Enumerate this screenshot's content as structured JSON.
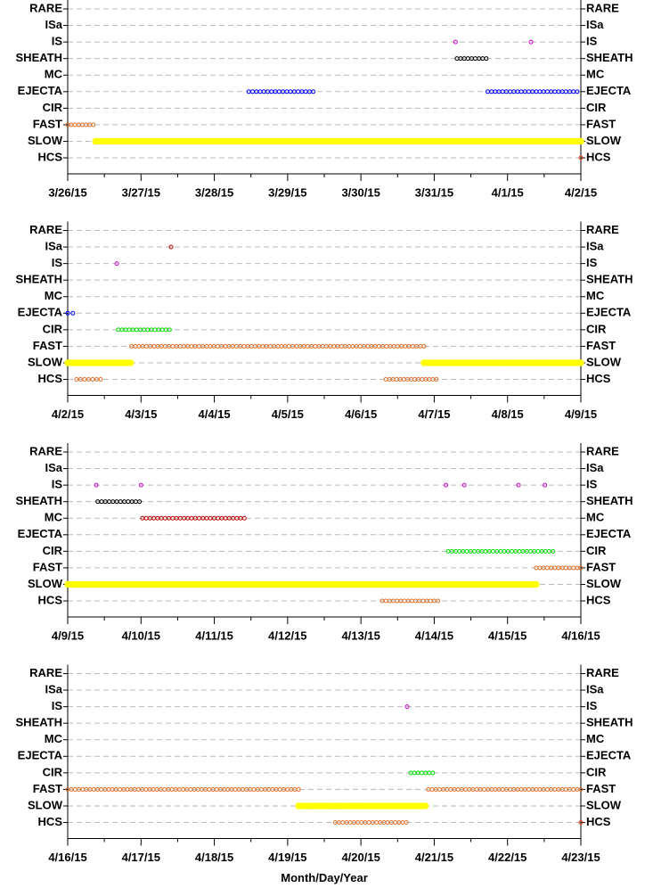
{
  "chart_data": [
    {
      "type": "timeline",
      "categories": [
        "RARE",
        "ISa",
        "IS",
        "SHEATH",
        "MC",
        "EJECTA",
        "CIR",
        "FAST",
        "SLOW",
        "HCS"
      ],
      "xlim": [
        0,
        7
      ],
      "xticks": [
        {
          "value": 0,
          "label": "3/26/15"
        },
        {
          "value": 1,
          "label": "3/27/15"
        },
        {
          "value": 2,
          "label": "3/28/15"
        },
        {
          "value": 3,
          "label": "3/29/15"
        },
        {
          "value": 4,
          "label": "3/30/15"
        },
        {
          "value": 5,
          "label": "3/31/15"
        },
        {
          "value": 6,
          "label": "4/1/15"
        },
        {
          "value": 7,
          "label": "4/2/15"
        }
      ],
      "grid": true,
      "intervals": [
        {
          "category": "FAST",
          "color": "#e0702a",
          "x": [
            0,
            0.35
          ]
        },
        {
          "category": "SLOW",
          "color": "#ffff00",
          "x": [
            0.38,
            7
          ]
        },
        {
          "category": "EJECTA",
          "color": "#0000ff",
          "x": [
            2.47,
            3.35
          ]
        },
        {
          "category": "EJECTA",
          "color": "#0000ff",
          "x": [
            5.73,
            6.95
          ]
        },
        {
          "category": "SHEATH",
          "color": "#000000",
          "x": [
            5.31,
            5.71
          ]
        },
        {
          "category": "IS",
          "color": "#cc00cc",
          "x": [
            5.29,
            5.29
          ]
        },
        {
          "category": "IS",
          "color": "#cc00cc",
          "x": [
            6.32,
            6.32
          ]
        },
        {
          "category": "HCS",
          "color": "#e04010",
          "x": [
            7,
            7
          ]
        }
      ]
    },
    {
      "type": "timeline",
      "categories": [
        "RARE",
        "ISa",
        "IS",
        "SHEATH",
        "MC",
        "EJECTA",
        "CIR",
        "FAST",
        "SLOW",
        "HCS"
      ],
      "xlim": [
        0,
        7
      ],
      "xticks": [
        {
          "value": 0,
          "label": "4/2/15"
        },
        {
          "value": 1,
          "label": "4/3/15"
        },
        {
          "value": 2,
          "label": "4/4/15"
        },
        {
          "value": 3,
          "label": "4/5/15"
        },
        {
          "value": 4,
          "label": "4/6/15"
        },
        {
          "value": 5,
          "label": "4/7/15"
        },
        {
          "value": 6,
          "label": "4/8/15"
        },
        {
          "value": 7,
          "label": "4/9/15"
        }
      ],
      "grid": true,
      "intervals": [
        {
          "category": "EJECTA",
          "color": "#0000ff",
          "x": [
            0,
            0.07
          ]
        },
        {
          "category": "IS",
          "color": "#cc00cc",
          "x": [
            0.67,
            0.67
          ]
        },
        {
          "category": "ISa",
          "color": "#cc0000",
          "x": [
            1.41,
            1.41
          ]
        },
        {
          "category": "CIR",
          "color": "#00dd00",
          "x": [
            0.69,
            1.39
          ]
        },
        {
          "category": "FAST",
          "color": "#e0702a",
          "x": [
            0.87,
            4.86
          ]
        },
        {
          "category": "SLOW",
          "color": "#ffff00",
          "x": [
            0,
            0.86
          ]
        },
        {
          "category": "SLOW",
          "color": "#ffff00",
          "x": [
            4.86,
            7
          ]
        },
        {
          "category": "HCS",
          "color": "#e0702a",
          "x": [
            0.12,
            0.45
          ]
        },
        {
          "category": "HCS",
          "color": "#e0702a",
          "x": [
            4.34,
            5.03
          ]
        }
      ]
    },
    {
      "type": "timeline",
      "categories": [
        "RARE",
        "ISa",
        "IS",
        "SHEATH",
        "MC",
        "EJECTA",
        "CIR",
        "FAST",
        "SLOW",
        "HCS"
      ],
      "xlim": [
        0,
        7
      ],
      "xticks": [
        {
          "value": 0,
          "label": "4/9/15"
        },
        {
          "value": 1,
          "label": "4/10/15"
        },
        {
          "value": 2,
          "label": "4/11/15"
        },
        {
          "value": 3,
          "label": "4/12/15"
        },
        {
          "value": 4,
          "label": "4/13/15"
        },
        {
          "value": 5,
          "label": "4/14/15"
        },
        {
          "value": 6,
          "label": "4/15/15"
        },
        {
          "value": 7,
          "label": "4/16/15"
        }
      ],
      "grid": true,
      "intervals": [
        {
          "category": "IS",
          "color": "#cc00cc",
          "x": [
            0.39,
            0.39
          ]
        },
        {
          "category": "IS",
          "color": "#cc00cc",
          "x": [
            1.0,
            1.0
          ]
        },
        {
          "category": "IS",
          "color": "#cc00cc",
          "x": [
            5.16,
            5.16
          ]
        },
        {
          "category": "IS",
          "color": "#cc00cc",
          "x": [
            5.41,
            5.41
          ]
        },
        {
          "category": "IS",
          "color": "#cc00cc",
          "x": [
            6.15,
            6.15
          ]
        },
        {
          "category": "IS",
          "color": "#cc00cc",
          "x": [
            6.51,
            6.51
          ]
        },
        {
          "category": "SHEATH",
          "color": "#000000",
          "x": [
            0.41,
            0.98
          ]
        },
        {
          "category": "MC",
          "color": "#bb0000",
          "x": [
            1.02,
            2.41
          ]
        },
        {
          "category": "CIR",
          "color": "#00dd00",
          "x": [
            5.19,
            6.62
          ]
        },
        {
          "category": "FAST",
          "color": "#e0702a",
          "x": [
            6.39,
            7
          ]
        },
        {
          "category": "SLOW",
          "color": "#ffff00",
          "x": [
            0,
            6.39
          ]
        },
        {
          "category": "HCS",
          "color": "#e0702a",
          "x": [
            4.29,
            5.05
          ]
        }
      ]
    },
    {
      "type": "timeline",
      "categories": [
        "RARE",
        "ISa",
        "IS",
        "SHEATH",
        "MC",
        "EJECTA",
        "CIR",
        "FAST",
        "SLOW",
        "HCS"
      ],
      "xlim": [
        0,
        7
      ],
      "xticks": [
        {
          "value": 0,
          "label": "4/16/15"
        },
        {
          "value": 1,
          "label": "4/17/15"
        },
        {
          "value": 2,
          "label": "4/18/15"
        },
        {
          "value": 3,
          "label": "4/19/15"
        },
        {
          "value": 4,
          "label": "4/20/15"
        },
        {
          "value": 5,
          "label": "4/21/15"
        },
        {
          "value": 6,
          "label": "4/22/15"
        },
        {
          "value": 7,
          "label": "4/23/15"
        }
      ],
      "grid": true,
      "xlabel": "Month/Day/Year",
      "intervals": [
        {
          "category": "IS",
          "color": "#cc00cc",
          "x": [
            4.63,
            4.63
          ]
        },
        {
          "category": "CIR",
          "color": "#00dd00",
          "x": [
            4.68,
            4.98
          ]
        },
        {
          "category": "FAST",
          "color": "#e0702a",
          "x": [
            0,
            3.15
          ]
        },
        {
          "category": "FAST",
          "color": "#e0702a",
          "x": [
            4.92,
            7
          ]
        },
        {
          "category": "SLOW",
          "color": "#ffff00",
          "x": [
            3.15,
            4.88
          ]
        },
        {
          "category": "HCS",
          "color": "#e0702a",
          "x": [
            3.65,
            4.62
          ]
        },
        {
          "category": "HCS",
          "color": "#e04010",
          "x": [
            7,
            7
          ]
        }
      ]
    }
  ]
}
